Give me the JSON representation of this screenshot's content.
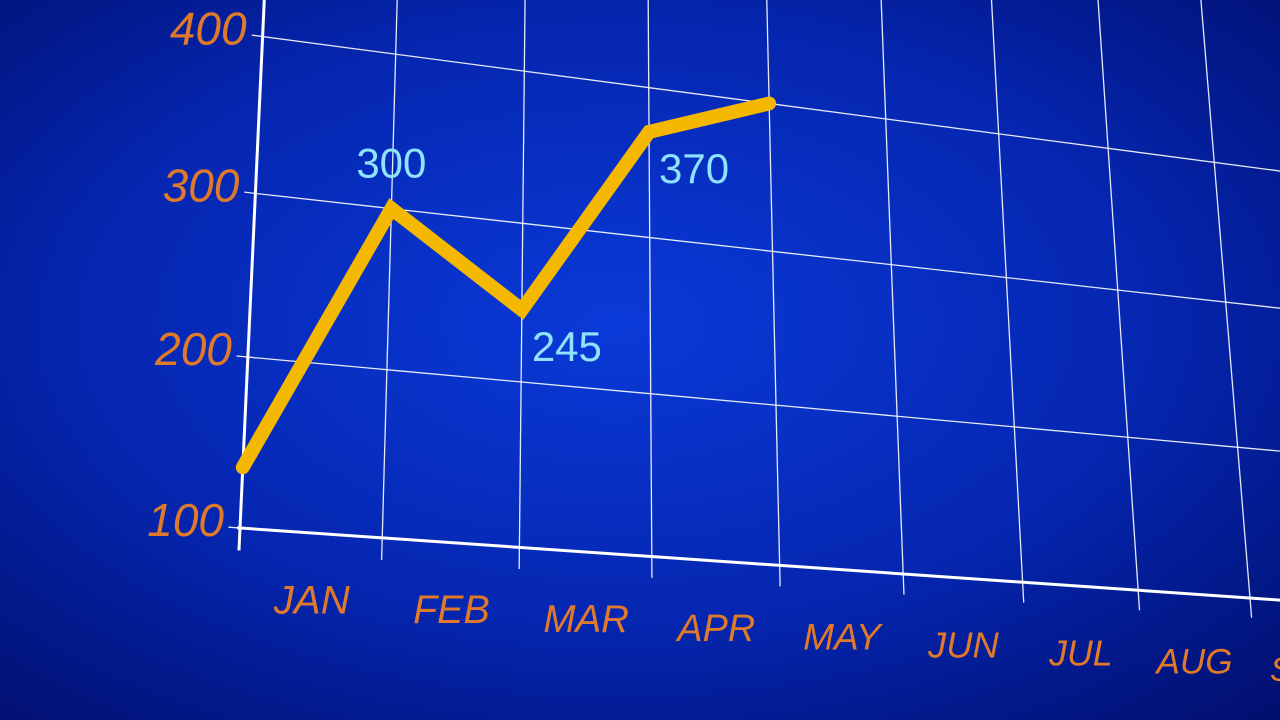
{
  "chart_data": {
    "type": "line",
    "categories": [
      "JAN",
      "FEB",
      "MAR",
      "APR",
      "MAY",
      "JUN",
      "JUL",
      "AUG",
      "SEP"
    ],
    "series": [
      {
        "color": "#f5b800",
        "values": [
          135,
          300,
          245,
          370,
          400,
          null,
          null,
          null,
          null
        ],
        "value_labels": [
          null,
          "300",
          "245",
          "370",
          null,
          null,
          null,
          null,
          null
        ]
      }
    ],
    "ylim": [
      100,
      420
    ],
    "yticks": [
      100,
      200,
      300,
      400
    ],
    "grid": true
  }
}
